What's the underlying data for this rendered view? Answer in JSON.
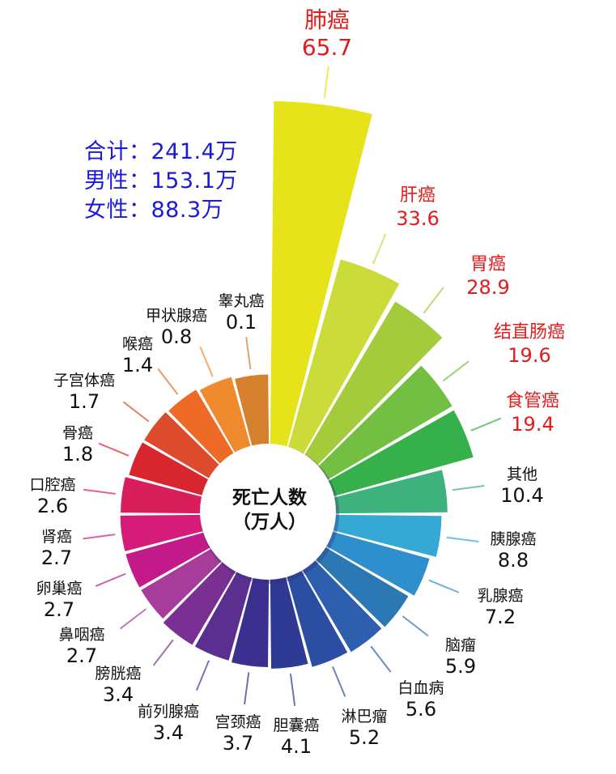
{
  "summary": {
    "total": "合计：241.4万",
    "male": "男性：153.1万",
    "female": "女性：88.3万"
  },
  "center": {
    "line1": "死亡人数",
    "line2": "（万人）"
  },
  "chart_data": {
    "type": "radial-bar",
    "title": "死亡人数（万人）",
    "unit": "万人",
    "start_angle_deg": 0,
    "direction": "clockwise",
    "categories": [
      "肺癌",
      "肝癌",
      "胃癌",
      "结直肠癌",
      "食管癌",
      "其他",
      "胰腺癌",
      "乳腺癌",
      "脑瘤",
      "白血病",
      "淋巴瘤",
      "胆囊癌",
      "宫颈癌",
      "前列腺癌",
      "膀胱癌",
      "鼻咽癌",
      "卵巢癌",
      "肾癌",
      "口腔癌",
      "骨癌",
      "子宫体癌",
      "喉癌",
      "甲状腺癌",
      "睾丸癌"
    ],
    "values": [
      65.7,
      33.6,
      28.9,
      19.6,
      19.4,
      10.4,
      8.8,
      7.2,
      5.9,
      5.6,
      5.2,
      4.1,
      3.7,
      3.4,
      3.4,
      2.7,
      2.7,
      2.7,
      2.6,
      1.8,
      1.7,
      1.4,
      0.8,
      0.1
    ],
    "highlighted": [
      "肺癌",
      "肝癌",
      "胃癌",
      "结直肠癌",
      "食管癌"
    ],
    "colors": [
      "#e6e31b",
      "#cbdb3a",
      "#a3cb3c",
      "#72bf44",
      "#35b04a",
      "#3db27c",
      "#35a8d3",
      "#2f8fcc",
      "#2b78b4",
      "#2d5fae",
      "#2c4ea2",
      "#2f3a94",
      "#3b3090",
      "#5a2f8f",
      "#7a2f93",
      "#a83c9a",
      "#c31a8a",
      "#d41c78",
      "#d81e5b",
      "#d7262e",
      "#dc4c2c",
      "#ee6a27",
      "#f08a2e",
      "#d4802c"
    ],
    "totals": {
      "total": 241.4,
      "male": 153.1,
      "female": 88.3
    },
    "legend": "none"
  },
  "labels": [
    {
      "name": "肺癌",
      "value": "65.7"
    },
    {
      "name": "肝癌",
      "value": "33.6"
    },
    {
      "name": "胃癌",
      "value": "28.9"
    },
    {
      "name": "结直肠癌",
      "value": "19.6"
    },
    {
      "name": "食管癌",
      "value": "19.4"
    },
    {
      "name": "其他",
      "value": "10.4"
    },
    {
      "name": "胰腺癌",
      "value": "8.8"
    },
    {
      "name": "乳腺癌",
      "value": "7.2"
    },
    {
      "name": "脑瘤",
      "value": "5.9"
    },
    {
      "name": "白血病",
      "value": "5.6"
    },
    {
      "name": "淋巴瘤",
      "value": "5.2"
    },
    {
      "name": "胆囊癌",
      "value": "4.1"
    },
    {
      "name": "宫颈癌",
      "value": "3.7"
    },
    {
      "name": "前列腺癌",
      "value": "3.4"
    },
    {
      "name": "膀胱癌",
      "value": "3.4"
    },
    {
      "name": "鼻咽癌",
      "value": "2.7"
    },
    {
      "name": "卵巢癌",
      "value": "2.7"
    },
    {
      "name": "肾癌",
      "value": "2.7"
    },
    {
      "name": "口腔癌",
      "value": "2.6"
    },
    {
      "name": "骨癌",
      "value": "1.8"
    },
    {
      "name": "子宫体癌",
      "value": "1.7"
    },
    {
      "name": "喉癌",
      "value": "1.4"
    },
    {
      "name": "甲状腺癌",
      "value": "0.8"
    },
    {
      "name": "睾丸癌",
      "value": "0.1"
    }
  ]
}
